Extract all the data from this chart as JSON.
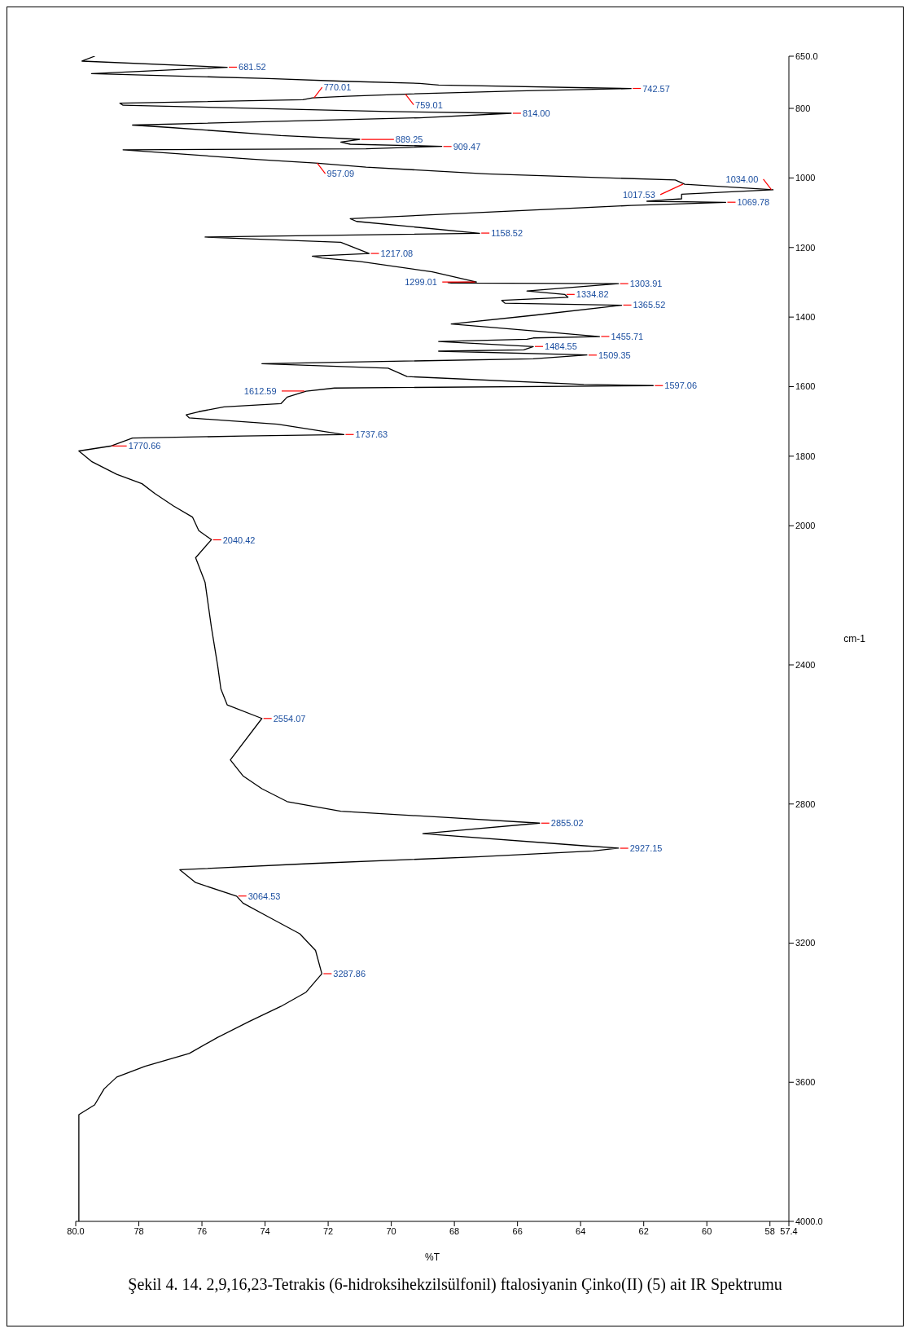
{
  "chart_data": {
    "type": "line",
    "xlabel": "%T",
    "ylabel": "cm-1",
    "xlim": [
      80,
      57.4
    ],
    "ylim": [
      4000,
      650
    ],
    "xticks": [
      {
        "value": 80,
        "label": "80.0"
      },
      78,
      76,
      74,
      72,
      70,
      68,
      66,
      64,
      62,
      60,
      58,
      57.4
    ],
    "yticks": [
      {
        "value": 4000,
        "label": "4000.0"
      },
      3600,
      3200,
      2800,
      2400,
      2000,
      1800,
      1600,
      1400,
      1200,
      1000,
      800,
      {
        "value": 650,
        "label": "650.0"
      }
    ],
    "grid": false,
    "marker": "none",
    "line_style": "solid",
    "x": [
      79.9,
      79.9,
      79.4,
      79.1,
      78.7,
      77.8,
      76.4,
      75.5,
      74.5,
      73.5,
      72.7,
      72.2,
      72.4,
      72.9,
      73.8,
      74.7,
      74.9,
      76.2,
      76.7,
      72.5,
      67.3,
      63.6,
      62.8,
      63.9,
      69.0,
      65.3,
      68.2,
      71.6,
      73.3,
      74.1,
      74.7,
      75.1,
      74.1,
      75.2,
      75.4,
      75.5,
      75.7,
      75.9,
      76.2,
      75.7,
      76.1,
      76.3,
      76.9,
      77.5,
      77.9,
      78.7,
      79.5,
      79.9,
      78.9,
      78.2,
      74.7,
      71.5,
      73.6,
      76.4,
      76.5,
      76.1,
      75.3,
      73.5,
      73.3,
      72.7,
      71.8,
      61.7,
      63.9,
      69.5,
      70.1,
      74.1,
      65.5,
      63.8,
      68.5,
      65.8,
      65.5,
      68.5,
      65.7,
      65.5,
      63.4,
      64.8,
      68.1,
      65.5,
      62.7,
      66.4,
      66.5,
      64.4,
      64.5,
      65.7,
      62.8,
      68.1,
      68.2,
      67.3,
      68.7,
      71.0,
      72.2,
      72.5,
      70.7,
      71.6,
      75.9,
      67.2,
      71.1,
      71.3,
      62.4,
      59.4,
      61.9,
      60.8,
      60.8,
      57.9,
      60.7,
      61.0,
      67.0,
      70.8,
      72.4,
      74.4,
      78.5,
      70.8,
      68.4,
      71.3,
      71.6,
      71.0,
      73.5,
      77.0,
      78.2,
      69.1,
      66.2,
      70.1,
      78.5,
      78.6,
      72.8,
      72.5,
      71.4,
      69.6,
      66.0,
      62.4,
      68.5,
      69.1,
      71.5,
      73.9,
      79.5,
      75.2,
      79.8,
      79.4
    ],
    "series": [
      {
        "color": "#000000",
        "values": [
          4000,
          3693,
          3665,
          3619,
          3585,
          3554,
          3517,
          3471,
          3425,
          3382,
          3341,
          3288,
          3221,
          3173,
          3129,
          3085,
          3065,
          3026,
          2989,
          2971,
          2952,
          2935,
          2927,
          2920,
          2885,
          2855,
          2839,
          2821,
          2793,
          2756,
          2719,
          2673,
          2554,
          2515,
          2469,
          2403,
          2292,
          2163,
          2092,
          2040,
          2014,
          1975,
          1943,
          1907,
          1879,
          1852,
          1815,
          1785,
          1771,
          1748,
          1742,
          1738,
          1708,
          1690,
          1681,
          1672,
          1658,
          1649,
          1630,
          1613,
          1604,
          1597,
          1594,
          1571,
          1547,
          1534,
          1520,
          1509,
          1498,
          1494,
          1485,
          1470,
          1464,
          1460,
          1456,
          1445,
          1420,
          1395,
          1366,
          1360,
          1352,
          1343,
          1335,
          1325,
          1304,
          1302,
          1301,
          1299,
          1270,
          1240,
          1230,
          1225,
          1217,
          1185,
          1170,
          1159,
          1125,
          1117,
          1079,
          1070,
          1067,
          1060,
          1047,
          1034,
          1018,
          1006,
          988,
          969,
          957,
          946,
          919,
          916,
          909,
          903,
          897,
          889,
          878,
          855,
          848,
          827,
          814,
          809,
          791,
          785,
          775,
          770,
          765,
          759,
          750,
          743,
          733,
          728,
          722,
          714,
          700,
          682,
          664,
          650
        ]
      }
    ],
    "annotations": [
      "Şekil 4. 14. 2,9,16,23-Tetrakis (6-hidroksihekzilsülfonil) ftalosiyanin Çinko(II) (5) ait IR Spektrumu",
      {
        "text": "3287.86",
        "x": 72.2,
        "y": 3287.86
      },
      {
        "text": "3064.53",
        "x": 74.9,
        "y": 3064.53
      },
      {
        "text": "2927.15",
        "x": 62.8,
        "y": 2927.15
      },
      {
        "text": "2855.02",
        "x": 65.3,
        "y": 2855.02
      },
      {
        "text": "2554.07",
        "x": 74.1,
        "y": 2554.07
      },
      {
        "text": "2040.42",
        "x": 75.7,
        "y": 2040.42
      },
      {
        "text": "1770.66",
        "x": 78.9,
        "y": 1770.66
      },
      {
        "text": "1737.63",
        "x": 71.5,
        "y": 1737.63
      },
      {
        "text": "1612.59",
        "x": 72.7,
        "y": 1612.59
      },
      {
        "text": "1597.06",
        "x": 61.7,
        "y": 1597.06
      },
      {
        "text": "1509.35",
        "x": 63.8,
        "y": 1509.35
      },
      {
        "text": "1484.55",
        "x": 65.5,
        "y": 1484.55
      },
      {
        "text": "1455.71",
        "x": 63.4,
        "y": 1455.71
      },
      {
        "text": "1365.52",
        "x": 62.7,
        "y": 1365.52
      },
      {
        "text": "1334.82",
        "x": 64.5,
        "y": 1334.82
      },
      {
        "text": "1303.91",
        "x": 62.8,
        "y": 1303.91
      },
      {
        "text": "1299.01",
        "x": 67.3,
        "y": 1299.01
      },
      {
        "text": "1217.08",
        "x": 70.7,
        "y": 1217.08
      },
      {
        "text": "1158.52",
        "x": 67.2,
        "y": 1158.52
      },
      {
        "text": "1069.78",
        "x": 59.4,
        "y": 1069.78
      },
      {
        "text": "1034.00",
        "x": 57.9,
        "y": 1034
      },
      {
        "text": "1017.53",
        "x": 60.7,
        "y": 1017.53
      },
      {
        "text": "957.09",
        "x": 72.4,
        "y": 957.09
      },
      {
        "text": "909.47",
        "x": 68.4,
        "y": 909.47
      },
      {
        "text": "889.25",
        "x": 71.0,
        "y": 889.25
      },
      {
        "text": "814.00",
        "x": 66.2,
        "y": 814
      },
      {
        "text": "770.01",
        "x": 72.5,
        "y": 770.01
      },
      {
        "text": "759.01",
        "x": 69.6,
        "y": 759.01
      },
      {
        "text": "742.57",
        "x": 62.4,
        "y": 742.57
      },
      {
        "text": "681.52",
        "x": 75.2,
        "y": 681.52
      }
    ]
  }
}
